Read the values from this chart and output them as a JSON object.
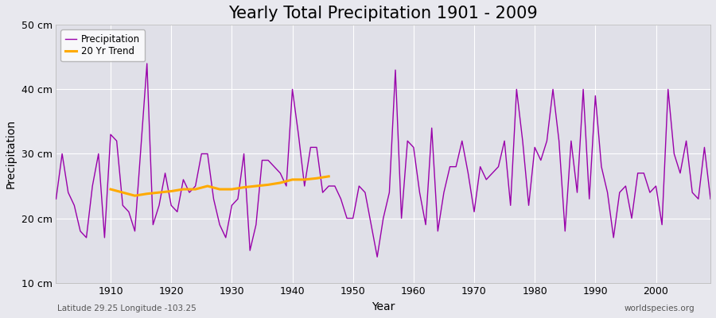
{
  "title": "Yearly Total Precipitation 1901 - 2009",
  "xlabel": "Year",
  "ylabel": "Precipitation",
  "subtitle_left": "Latitude 29.25 Longitude -103.25",
  "subtitle_right": "worldspecies.org",
  "years": [
    1901,
    1902,
    1903,
    1904,
    1905,
    1906,
    1907,
    1908,
    1909,
    1910,
    1911,
    1912,
    1913,
    1914,
    1915,
    1916,
    1917,
    1918,
    1919,
    1920,
    1921,
    1922,
    1923,
    1924,
    1925,
    1926,
    1927,
    1928,
    1929,
    1930,
    1931,
    1932,
    1933,
    1934,
    1935,
    1936,
    1937,
    1938,
    1939,
    1940,
    1941,
    1942,
    1943,
    1944,
    1945,
    1946,
    1947,
    1948,
    1949,
    1950,
    1951,
    1952,
    1953,
    1954,
    1955,
    1956,
    1957,
    1958,
    1959,
    1960,
    1961,
    1962,
    1963,
    1964,
    1965,
    1966,
    1967,
    1968,
    1969,
    1970,
    1971,
    1972,
    1973,
    1974,
    1975,
    1976,
    1977,
    1978,
    1979,
    1980,
    1981,
    1982,
    1983,
    1984,
    1985,
    1986,
    1987,
    1988,
    1989,
    1990,
    1991,
    1992,
    1993,
    1994,
    1995,
    1996,
    1997,
    1998,
    1999,
    2000,
    2001,
    2002,
    2003,
    2004,
    2005,
    2006,
    2007,
    2008,
    2009
  ],
  "precip": [
    23,
    30,
    24,
    22,
    18,
    17,
    25,
    30,
    17,
    33,
    32,
    22,
    21,
    18,
    31,
    44,
    19,
    22,
    27,
    22,
    21,
    26,
    24,
    25,
    30,
    30,
    23,
    19,
    17,
    22,
    23,
    30,
    15,
    19,
    29,
    29,
    28,
    27,
    25,
    40,
    33,
    25,
    31,
    31,
    24,
    25,
    25,
    23,
    20,
    20,
    25,
    24,
    19,
    14,
    20,
    24,
    43,
    20,
    32,
    31,
    24,
    19,
    34,
    18,
    24,
    28,
    28,
    32,
    27,
    21,
    28,
    26,
    27,
    28,
    32,
    22,
    40,
    32,
    22,
    31,
    29,
    32,
    40,
    32,
    18,
    32,
    24,
    40,
    23,
    39,
    28,
    24,
    17,
    24,
    25,
    20,
    27,
    27,
    24,
    25,
    19,
    40,
    30,
    27,
    32,
    24,
    23,
    31,
    23
  ],
  "trend_years": [
    1910,
    1912,
    1914,
    1916,
    1918,
    1920,
    1922,
    1924,
    1926,
    1928,
    1930,
    1932,
    1934,
    1936,
    1938,
    1940,
    1942,
    1944,
    1946
  ],
  "trend_values": [
    24.5,
    24.0,
    23.5,
    23.8,
    24.0,
    24.2,
    24.5,
    24.5,
    25.0,
    24.5,
    24.5,
    24.8,
    25.0,
    25.2,
    25.5,
    26.0,
    26.0,
    26.2,
    26.5
  ],
  "precip_color": "#9900aa",
  "trend_color": "#ffaa00",
  "bg_color": "#e8e8ee",
  "plot_bg_color": "#e0e0e8",
  "grid_color": "#ffffff",
  "ylim": [
    10,
    50
  ],
  "yticks": [
    10,
    20,
    30,
    40,
    50
  ],
  "ytick_labels": [
    "10 cm",
    "20 cm",
    "30 cm",
    "40 cm",
    "50 cm"
  ],
  "xticks": [
    1910,
    1920,
    1930,
    1940,
    1950,
    1960,
    1970,
    1980,
    1990,
    2000
  ],
  "xlim": [
    1901,
    2009
  ],
  "title_fontsize": 15,
  "axis_fontsize": 9,
  "legend_fontsize": 8.5,
  "subtitle_fontsize": 7.5,
  "subtitle_color": "#555555"
}
